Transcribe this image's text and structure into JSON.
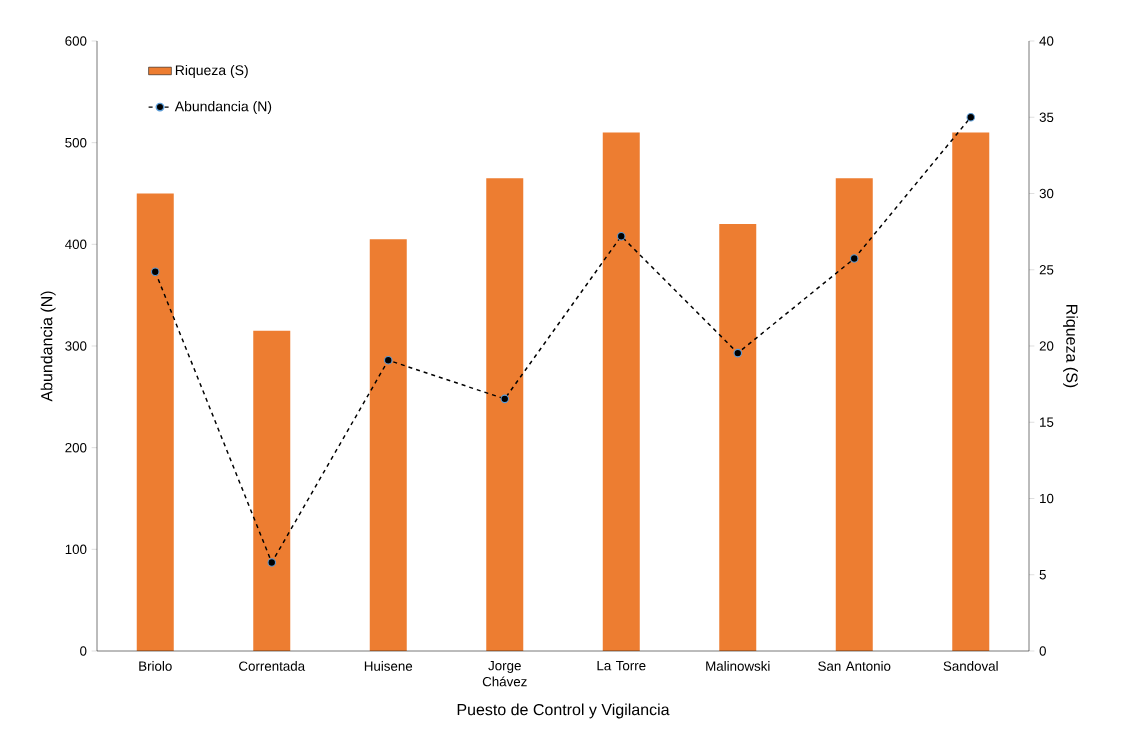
{
  "chart_data": {
    "type": "bar",
    "xlabel": "Puesto de Control y Vigilancia",
    "ylabel": "Abundancia (N)",
    "y2label": "Riqueza (S)",
    "categories": [
      "Briolo",
      "Correntada",
      "Huisene",
      "Jorge Chávez",
      "La Torre",
      "Malinowski",
      "San Antonio",
      "Sandoval"
    ],
    "series": [
      {
        "name": "Riqueza (S)",
        "axis": "y2",
        "color": "#ed7d31",
        "values": [
          30,
          21,
          27,
          31,
          34,
          28,
          31,
          34
        ]
      },
      {
        "name": "Abundancia (N)",
        "type": "line",
        "color": "#000000",
        "marker": "circle",
        "line_style": "dashed",
        "values": [
          373,
          87,
          286,
          248,
          408,
          293,
          386,
          525
        ]
      }
    ],
    "ylim": [
      0,
      600
    ],
    "yticks": [
      0,
      100,
      200,
      300,
      400,
      500,
      600
    ],
    "y2lim": [
      0,
      40
    ],
    "y2ticks": [
      0,
      5,
      10,
      15,
      20,
      25,
      30,
      35,
      40
    ],
    "legend": "top left"
  }
}
